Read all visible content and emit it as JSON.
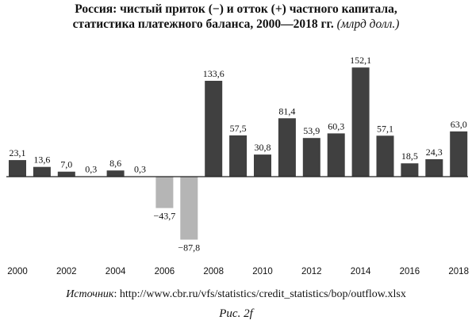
{
  "title": {
    "line1": "Россия: чистый приток (−) и отток (+) частного капитала,",
    "line2": "статистика платежного баланса, 2000—2018 гг.",
    "unit": "(млрд долл.)"
  },
  "source": {
    "lead": "Источник",
    "text": ": http://www.cbr.ru/vfs/statistics/credit_statistics/bop/outflow.xlsx"
  },
  "figure_caption": "Рис. 2f",
  "colors": {
    "positive": "#404040",
    "negative": "#b5b5b5",
    "axis": "#222222"
  },
  "chart_data": {
    "type": "bar",
    "categories": [
      "2000",
      "2001",
      "2002",
      "2003",
      "2004",
      "2005",
      "2006",
      "2007",
      "2008",
      "2009",
      "2010",
      "2011",
      "2012",
      "2013",
      "2014",
      "2015",
      "2016",
      "2017",
      "2018"
    ],
    "values": [
      23.1,
      13.6,
      7.0,
      0.3,
      8.6,
      0.3,
      -43.7,
      -87.8,
      133.6,
      57.5,
      30.8,
      81.4,
      53.9,
      60.3,
      152.1,
      57.1,
      18.5,
      24.3,
      63.0
    ],
    "value_labels": [
      "23,1",
      "13,6",
      "7,0",
      "0,3",
      "8,6",
      "0,3",
      "−43,7",
      "−87,8",
      "133,6",
      "57,5",
      "30,8",
      "81,4",
      "53,9",
      "60,3",
      "152,1",
      "57,1",
      "18,5",
      "24,3",
      "63,0"
    ],
    "x_tick_labels": [
      "2000",
      "",
      "2002",
      "",
      "2004",
      "",
      "2006",
      "",
      "2008",
      "",
      "2010",
      "",
      "2012",
      "",
      "2014",
      "",
      "2016",
      "",
      "2018"
    ],
    "grid": false,
    "legend": "none"
  }
}
